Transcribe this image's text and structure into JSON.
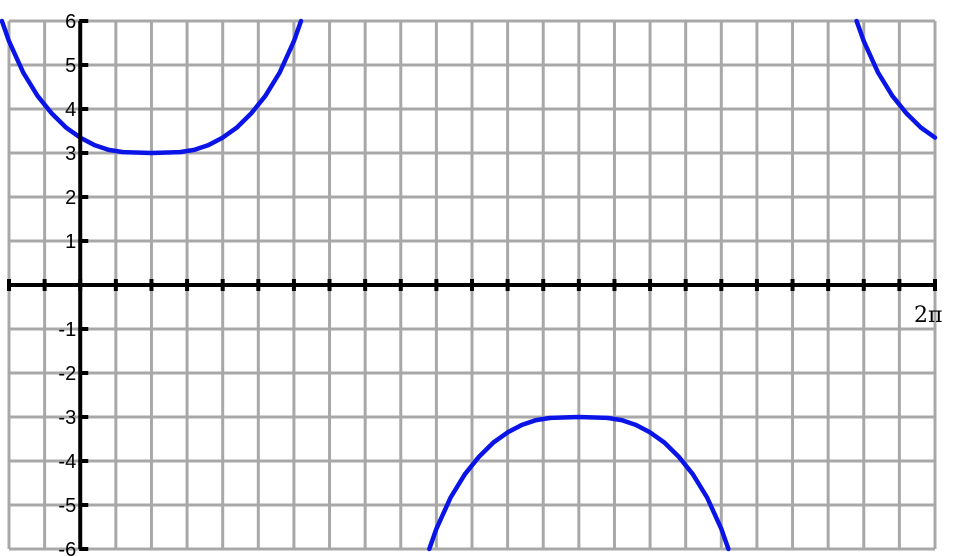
{
  "chart_data": {
    "type": "line",
    "title": "",
    "xlabel": "",
    "ylabel": "",
    "x_end_label": "2π",
    "x_unit": "π",
    "xlim": [
      -0.125,
      1.5
    ],
    "ylim": [
      -6,
      6
    ],
    "x_tick_step": 0.0625,
    "grid": true,
    "y_ticks": [
      6,
      5,
      4,
      3,
      2,
      1,
      -1,
      -2,
      -3,
      -4,
      -5,
      -6
    ],
    "y_tick_labels": [
      "6",
      "5",
      "4",
      "3",
      "2",
      "1",
      "-1",
      "-2",
      "-3",
      "-4",
      "-5",
      "-6"
    ],
    "curve_color": "#0a14e6",
    "series": [
      {
        "values": [
          [
            -0.1375,
            6.0
          ],
          [
            -0.125,
            5.54
          ],
          [
            -0.1,
            4.83
          ],
          [
            -0.075,
            4.3
          ],
          [
            -0.05,
            3.9
          ],
          [
            -0.025,
            3.58
          ],
          [
            0.0,
            3.35
          ],
          [
            0.025,
            3.18
          ],
          [
            0.05,
            3.07
          ],
          [
            0.075,
            3.02
          ],
          [
            0.125,
            3.0
          ],
          [
            0.175,
            3.02
          ],
          [
            0.2,
            3.07
          ],
          [
            0.225,
            3.18
          ],
          [
            0.25,
            3.35
          ],
          [
            0.275,
            3.58
          ],
          [
            0.3,
            3.9
          ],
          [
            0.325,
            4.3
          ],
          [
            0.35,
            4.83
          ],
          [
            0.375,
            5.54
          ],
          [
            0.3875,
            6.0
          ]
        ]
      },
      {
        "values": [
          [
            0.6125,
            -6.0
          ],
          [
            0.625,
            -5.54
          ],
          [
            0.65,
            -4.83
          ],
          [
            0.675,
            -4.3
          ],
          [
            0.7,
            -3.9
          ],
          [
            0.725,
            -3.58
          ],
          [
            0.75,
            -3.35
          ],
          [
            0.775,
            -3.18
          ],
          [
            0.8,
            -3.07
          ],
          [
            0.825,
            -3.02
          ],
          [
            0.875,
            -3.0
          ],
          [
            0.925,
            -3.02
          ],
          [
            0.95,
            -3.07
          ],
          [
            0.975,
            -3.18
          ],
          [
            1.0,
            -3.35
          ],
          [
            1.025,
            -3.58
          ],
          [
            1.05,
            -3.9
          ],
          [
            1.075,
            -4.3
          ],
          [
            1.1,
            -4.83
          ],
          [
            1.125,
            -5.54
          ],
          [
            1.1375,
            -6.0
          ]
        ]
      },
      {
        "values": [
          [
            1.3625,
            6.0
          ],
          [
            1.375,
            5.54
          ],
          [
            1.4,
            4.83
          ],
          [
            1.425,
            4.3
          ],
          [
            1.45,
            3.9
          ],
          [
            1.475,
            3.58
          ],
          [
            1.5,
            3.35
          ]
        ]
      }
    ]
  }
}
